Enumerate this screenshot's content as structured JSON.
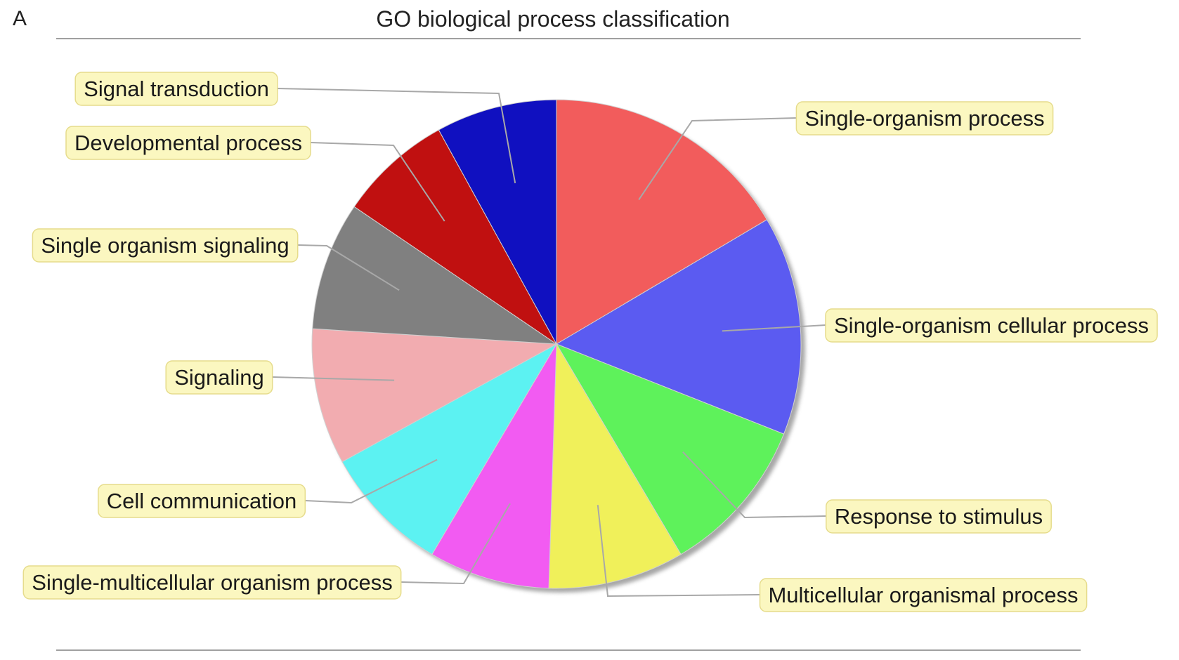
{
  "panel_letter": "A",
  "chart_data": {
    "type": "pie",
    "title": "GO biological process classification",
    "start_angle_deg": 0,
    "direction": "clockwise",
    "slices": [
      {
        "label": "Single-organism process",
        "value": 16.5,
        "color": "#f25c5c"
      },
      {
        "label": "Single-organism cellular process",
        "value": 14.5,
        "color": "#5b5bf1"
      },
      {
        "label": "Response to stimulus",
        "value": 10.5,
        "color": "#5ef25b"
      },
      {
        "label": "Multicellular organismal process",
        "value": 9.0,
        "color": "#f0f05a"
      },
      {
        "label": "Single-multicellular organism process",
        "value": 8.0,
        "color": "#f25bf2"
      },
      {
        "label": "Cell communication",
        "value": 8.5,
        "color": "#5cf2f2"
      },
      {
        "label": "Signaling",
        "value": 9.0,
        "color": "#f2acb0"
      },
      {
        "label": "Single organism signaling",
        "value": 8.5,
        "color": "#808080"
      },
      {
        "label": "Developmental process",
        "value": 7.5,
        "color": "#c01010"
      },
      {
        "label": "Signal transduction",
        "value": 8.0,
        "color": "#1010c0"
      }
    ]
  }
}
